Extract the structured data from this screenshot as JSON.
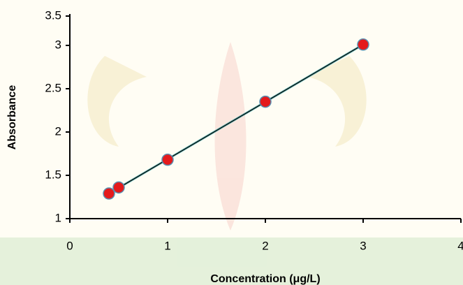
{
  "chart_data": {
    "type": "scatter",
    "x_label": "Concentration (μg/L)",
    "y_label": "Absorbance",
    "series": [
      {
        "name": "Absorbance",
        "color": "#e41a1c",
        "x": [
          0.4,
          0.5,
          1,
          2,
          3
        ],
        "values": [
          1.29,
          1.36,
          1.68,
          2.35,
          3.01
        ]
      }
    ],
    "trendline": true,
    "xlim": [
      0,
      4
    ],
    "xticks": [
      0,
      1,
      2,
      3,
      4
    ],
    "ylim": [
      1,
      3.5
    ],
    "yticks": [
      1,
      1.5,
      2,
      2.5,
      3,
      3.5
    ]
  }
}
